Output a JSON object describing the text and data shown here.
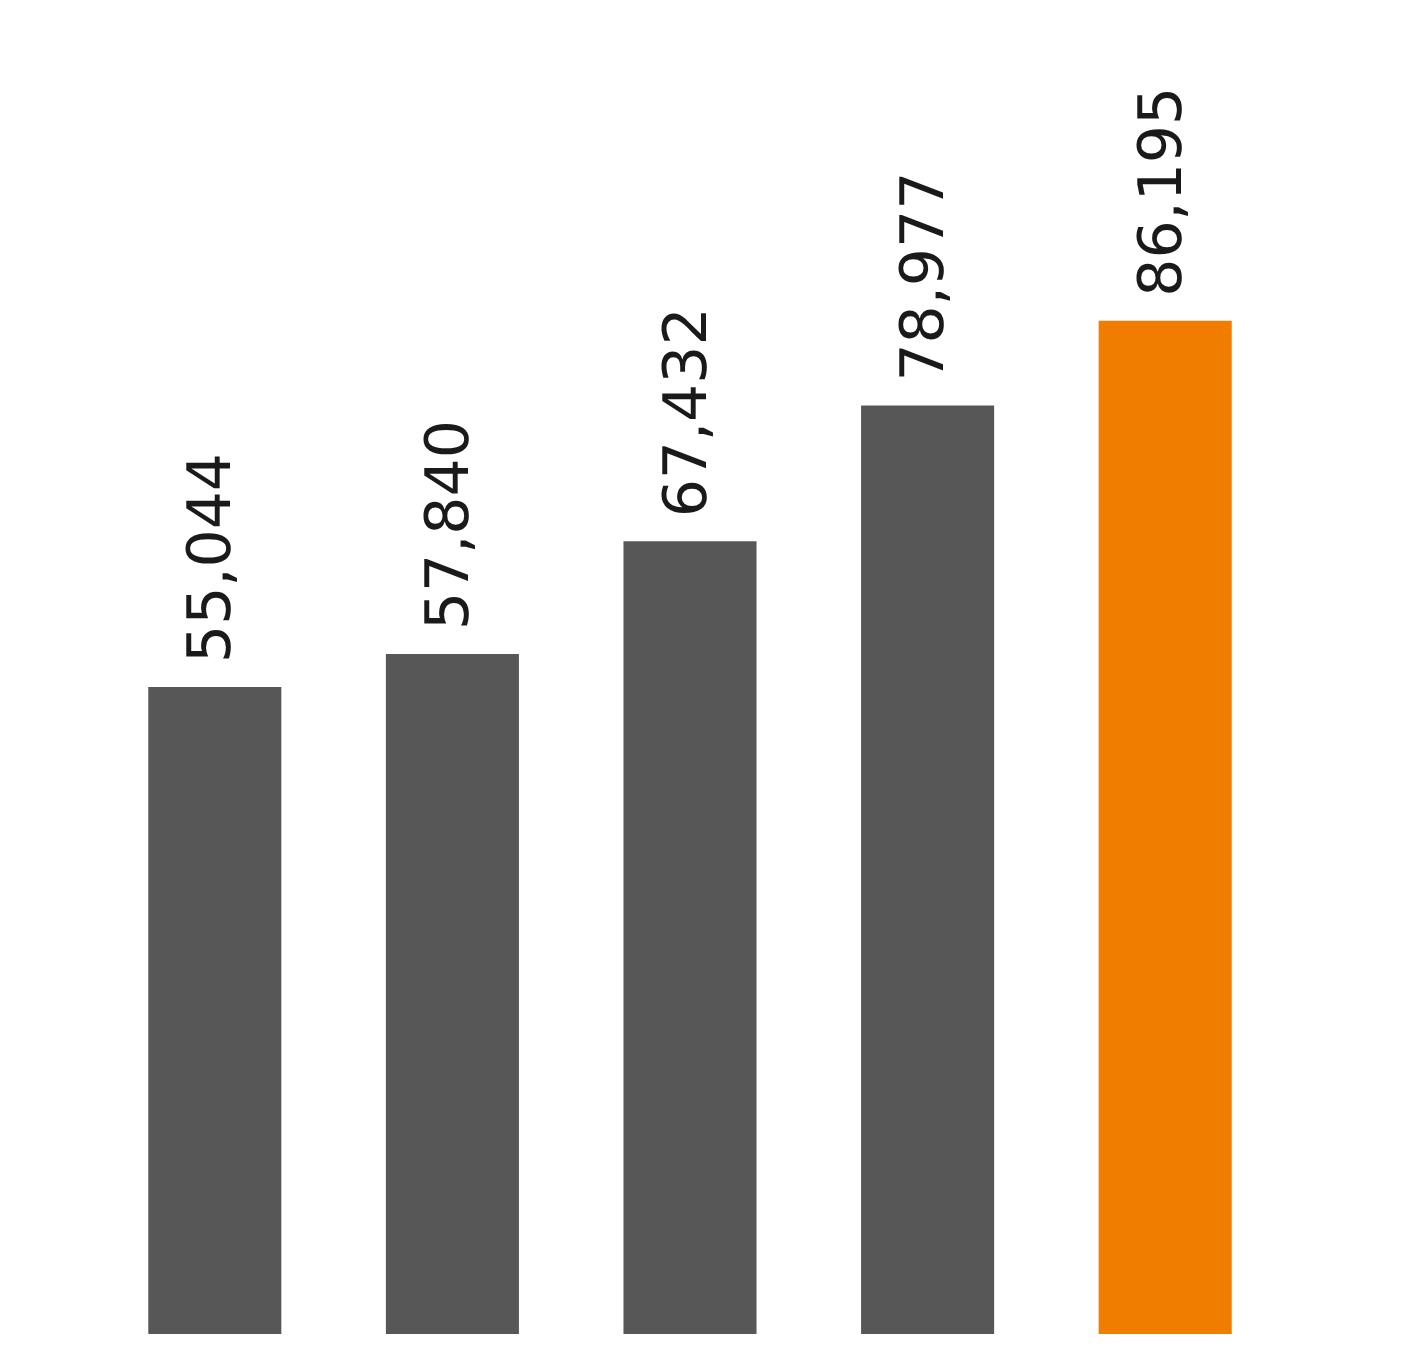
{
  "chart_data": {
    "type": "bar",
    "categories": [
      null,
      null,
      null,
      null,
      null
    ],
    "values": [
      55044,
      57840,
      67432,
      78977,
      86195
    ],
    "value_labels": [
      "55,044",
      "57,840",
      "67,432",
      "78,977",
      "86,195"
    ],
    "colors": [
      "#575757",
      "#575757",
      "#575757",
      "#575757",
      "#f07d00"
    ]
  }
}
